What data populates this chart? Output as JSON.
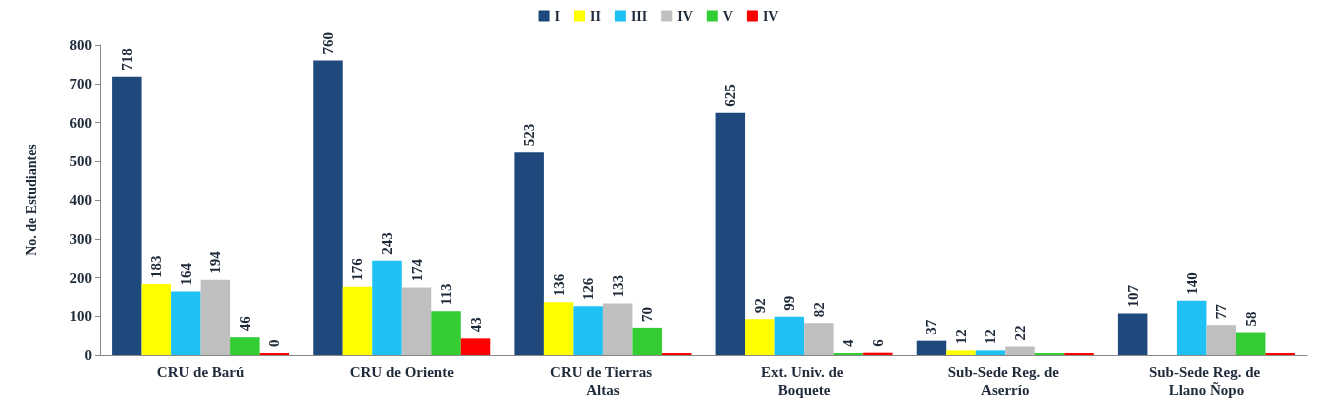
{
  "chart_data": {
    "type": "bar",
    "ylabel": "No. de Estudiantes",
    "categories": [
      "CRU de Barú",
      "CRU de Oriente",
      "CRU de Tierras Altas",
      "Ext. Univ. de Boquete",
      "Sub-Sede Reg. de Aserrío",
      "Sub-Sede Reg. de Llano Ñopo"
    ],
    "series": [
      {
        "name": "I",
        "color": "#1f497d",
        "values": [
          718,
          760,
          523,
          625,
          37,
          107
        ],
        "value_labels": [
          "718",
          "760",
          "523",
          "625",
          "37",
          "107"
        ]
      },
      {
        "name": "II",
        "color": "#ffff00",
        "values": [
          183,
          176,
          136,
          92,
          12,
          null
        ],
        "value_labels": [
          "183",
          "176",
          "136",
          "92",
          "12",
          null
        ]
      },
      {
        "name": "III",
        "color": "#1fc1f5",
        "values": [
          164,
          243,
          126,
          99,
          12,
          140
        ],
        "value_labels": [
          "164",
          "243",
          "126",
          "99",
          "12",
          "140"
        ]
      },
      {
        "name": "IV",
        "color": "#bfbfbf",
        "values": [
          194,
          174,
          133,
          82,
          22,
          77
        ],
        "value_labels": [
          "194",
          "174",
          "133",
          "82",
          "22",
          "77"
        ]
      },
      {
        "name": "V",
        "color": "#33cc33",
        "values": [
          46,
          113,
          70,
          4,
          3,
          58
        ],
        "value_labels": [
          "46",
          "113",
          "70",
          "4",
          null,
          "58"
        ]
      },
      {
        "name": "IV",
        "color": "#ff0000",
        "values": [
          0,
          43,
          3,
          6,
          3,
          3
        ],
        "value_labels": [
          "0",
          "43",
          null,
          "6",
          null,
          null
        ]
      }
    ],
    "ylim": [
      0,
      800
    ],
    "yticks": [
      0,
      100,
      200,
      300,
      400,
      500,
      600,
      700,
      800
    ],
    "grid": false,
    "legend": "top"
  }
}
